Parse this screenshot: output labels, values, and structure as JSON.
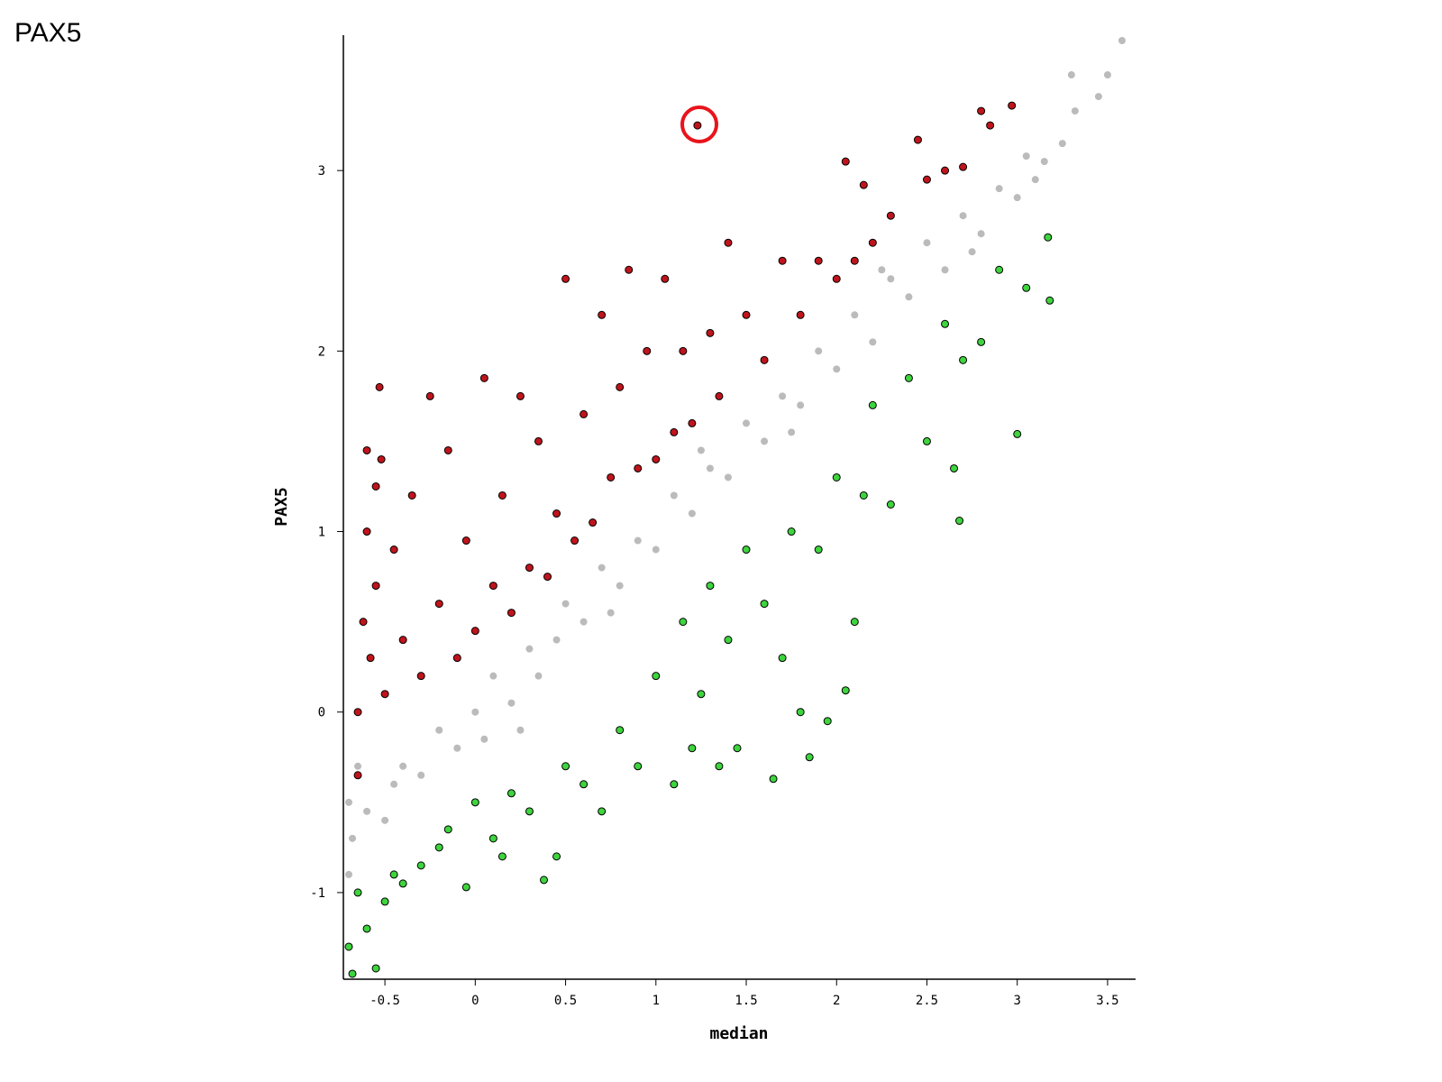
{
  "page_title": "PAX5",
  "chart_data": {
    "type": "scatter",
    "x_label": "median",
    "y_label": "PAX5",
    "xlim": [
      -0.73,
      3.655
    ],
    "ylim": [
      -1.48,
      3.75
    ],
    "xticks": [
      -0.5,
      0,
      0.5,
      1,
      1.5,
      2,
      2.5,
      3,
      3.5
    ],
    "yticks": [
      -1,
      0,
      1,
      2,
      3
    ],
    "series": [
      {
        "color": "#bbbbbb",
        "stroke": "none",
        "x": [
          -0.7,
          -0.7,
          -0.68,
          -0.6,
          -0.5,
          -0.45,
          -0.4,
          -0.3,
          -0.2,
          -0.1,
          0,
          0.05,
          0.1,
          0.2,
          0.3,
          0.35,
          0.45,
          0.5,
          0.6,
          0.7,
          0.8,
          0.9,
          1,
          1.1,
          1.2,
          1.3,
          1.4,
          1.5,
          1.6,
          1.7,
          1.8,
          1.9,
          2.0,
          2.1,
          2.2,
          2.3,
          2.4,
          2.5,
          2.6,
          2.7,
          2.8,
          2.9,
          3.0,
          3.05,
          3.1,
          3.15,
          3.25,
          3.32,
          3.45,
          3.3,
          3.5,
          3.58,
          -0.65,
          0.25,
          0.75,
          1.25,
          1.75,
          2.25,
          2.75
        ],
        "values": [
          -0.9,
          -0.5,
          -0.7,
          -0.55,
          -0.6,
          -0.4,
          -0.3,
          -0.35,
          -0.1,
          -0.2,
          0,
          -0.15,
          0.2,
          0.05,
          0.35,
          0.2,
          0.4,
          0.6,
          0.5,
          0.8,
          0.7,
          0.95,
          0.9,
          1.2,
          1.1,
          1.35,
          1.3,
          1.6,
          1.5,
          1.75,
          1.7,
          2.0,
          1.9,
          2.2,
          2.05,
          2.4,
          2.3,
          2.6,
          2.45,
          2.75,
          2.65,
          2.9,
          2.85,
          3.08,
          2.95,
          3.05,
          3.15,
          3.33,
          3.41,
          3.53,
          3.53,
          3.72,
          -0.3,
          -0.1,
          0.55,
          1.45,
          1.55,
          2.45,
          2.55
        ]
      },
      {
        "color": "#c0141c",
        "stroke": "#000000",
        "x": [
          -0.65,
          -0.65,
          -0.62,
          -0.6,
          -0.6,
          -0.58,
          -0.55,
          -0.55,
          -0.53,
          -0.52,
          -0.5,
          -0.45,
          -0.4,
          -0.35,
          -0.3,
          -0.25,
          -0.2,
          -0.15,
          -0.1,
          -0.05,
          0,
          0.05,
          0.1,
          0.15,
          0.2,
          0.25,
          0.3,
          0.35,
          0.4,
          0.45,
          0.5,
          0.55,
          0.6,
          0.65,
          0.7,
          0.75,
          0.8,
          0.85,
          0.9,
          0.95,
          1.0,
          1.05,
          1.1,
          1.15,
          1.2,
          1.23,
          1.3,
          1.35,
          1.4,
          1.5,
          1.6,
          1.7,
          1.8,
          1.9,
          2.0,
          2.05,
          2.1,
          2.15,
          2.2,
          2.3,
          2.45,
          2.5,
          2.6,
          2.7,
          2.8,
          2.85,
          2.97
        ],
        "values": [
          0.0,
          -0.35,
          0.5,
          1.0,
          1.45,
          0.3,
          1.25,
          0.7,
          1.8,
          1.4,
          0.1,
          0.9,
          0.4,
          1.2,
          0.2,
          1.75,
          0.6,
          1.45,
          0.3,
          0.95,
          0.45,
          1.85,
          0.7,
          1.2,
          0.55,
          1.75,
          0.8,
          1.5,
          0.75,
          1.1,
          2.4,
          0.95,
          1.65,
          1.05,
          2.2,
          1.3,
          1.8,
          2.45,
          1.35,
          2.0,
          1.4,
          2.4,
          1.55,
          2.0,
          1.6,
          3.25,
          2.1,
          1.75,
          2.6,
          2.2,
          1.95,
          2.5,
          2.2,
          2.5,
          2.4,
          3.05,
          2.5,
          2.92,
          2.6,
          2.75,
          3.17,
          2.95,
          3.0,
          3.02,
          3.33,
          3.25,
          3.36
        ]
      },
      {
        "color": "#3ed43e",
        "stroke": "#000000",
        "x": [
          -0.7,
          -0.68,
          -0.65,
          -0.6,
          -0.55,
          -0.5,
          -0.45,
          -0.4,
          -0.3,
          -0.2,
          -0.15,
          -0.05,
          0,
          0.1,
          0.15,
          0.2,
          0.3,
          0.38,
          0.45,
          0.5,
          0.6,
          0.7,
          0.8,
          0.9,
          1.0,
          1.1,
          1.15,
          1.2,
          1.25,
          1.3,
          1.35,
          1.4,
          1.45,
          1.5,
          1.6,
          1.65,
          1.7,
          1.75,
          1.8,
          1.85,
          1.9,
          1.95,
          2.0,
          2.05,
          2.1,
          2.15,
          2.2,
          2.3,
          2.4,
          2.5,
          2.6,
          2.65,
          2.68,
          2.7,
          2.8,
          2.9,
          3.0,
          3.05,
          3.18,
          3.17
        ],
        "values": [
          -1.3,
          -1.45,
          -1.0,
          -1.2,
          -1.42,
          -1.05,
          -0.9,
          -0.95,
          -0.85,
          -0.75,
          -0.65,
          -0.97,
          -0.5,
          -0.7,
          -0.8,
          -0.45,
          -0.55,
          -0.93,
          -0.8,
          -0.3,
          -0.4,
          -0.55,
          -0.1,
          -0.3,
          0.2,
          -0.4,
          0.5,
          -0.2,
          0.1,
          0.7,
          -0.3,
          0.4,
          -0.2,
          0.9,
          0.6,
          -0.37,
          0.3,
          1.0,
          0.0,
          -0.25,
          0.9,
          -0.05,
          1.3,
          0.12,
          0.5,
          1.2,
          1.7,
          1.15,
          1.85,
          1.5,
          2.15,
          1.35,
          1.06,
          1.95,
          2.05,
          2.45,
          1.54,
          2.35,
          2.28,
          2.63
        ]
      }
    ]
  }
}
